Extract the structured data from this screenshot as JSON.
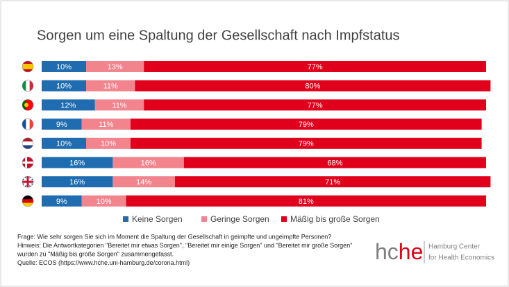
{
  "chart_data": {
    "type": "stacked-bar-horizontal",
    "title": "Sorgen um eine Spaltung der Gesellschaft nach Impfstatus",
    "categories": [
      null,
      null,
      null,
      null,
      null,
      null,
      null,
      null
    ],
    "xlim": [
      0,
      100
    ],
    "series": [
      {
        "name": "Keine Sorgen",
        "color": "#1f6db0",
        "values": [
          10,
          10,
          12,
          9,
          10,
          16,
          16,
          9
        ],
        "value_labels": [
          "10%",
          "10%",
          "12%",
          "9%",
          "10%",
          "16%",
          "16%",
          "9%"
        ]
      },
      {
        "name": "Geringe Sorgen",
        "color": "#f2848e",
        "values": [
          13,
          11,
          11,
          11,
          10,
          16,
          14,
          10
        ],
        "value_labels": [
          "13%",
          "11%",
          "11%",
          "11%",
          "10%",
          "16%",
          "14%",
          "10%"
        ]
      },
      {
        "name": "Mäßig bis große Sorgen",
        "color": "#e0001b",
        "values": [
          77,
          80,
          77,
          79,
          79,
          68,
          71,
          81
        ],
        "value_labels": [
          "77%",
          "80%",
          "77%",
          "79%",
          "79%",
          "68%",
          "71%",
          "81%"
        ]
      }
    ],
    "notes": [
      "Frage: Wie sehr sorgen Sie sich im Moment die Spaltung der Gesellschaft in geimpfte und ungeimpfte Personen?",
      "Hinweis: Die Antwortkategorien \"Bereitet mir etwas Sorgen\", \"Bereitet mir einige Sorgen\" und \"Bereitet mir große Sorgen\"",
      "wurden zu \"Mäßig bis große Sorgen\" zusammengefasst.",
      "Quelle: ECOS (https://www.hche.uni-hamburg.de/corona.html)"
    ],
    "logo": {
      "mark_a": "hc",
      "mark_b": "he",
      "line1": "Hamburg Center",
      "line2": "for Health Economics"
    }
  }
}
